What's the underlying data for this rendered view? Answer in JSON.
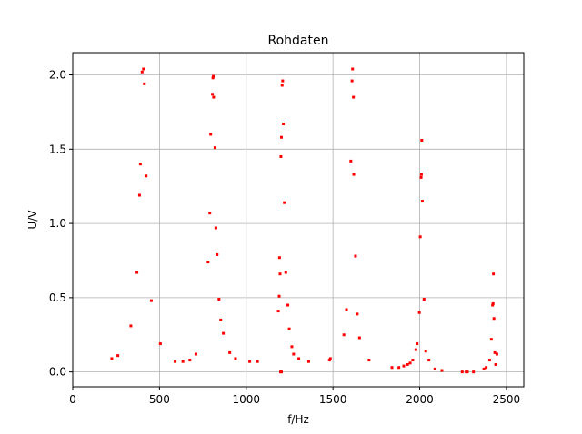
{
  "chart_data": {
    "type": "scatter",
    "title": "Rohdaten",
    "xlabel": "f/Hz",
    "ylabel": "U/V",
    "xlim": [
      0,
      2600
    ],
    "ylim": [
      -0.1,
      2.15
    ],
    "xticks": [
      0,
      500,
      1000,
      1500,
      2000,
      2500
    ],
    "yticks": [
      0.0,
      0.5,
      1.0,
      1.5,
      2.0
    ],
    "xtick_labels": [
      "0",
      "500",
      "1000",
      "1500",
      "2000",
      "2500"
    ],
    "ytick_labels": [
      "0.0",
      "0.5",
      "1.0",
      "1.5",
      "2.0"
    ],
    "grid": true,
    "marker_color": "#ff0000",
    "points": [
      [
        225,
        0.09
      ],
      [
        260,
        0.11
      ],
      [
        335,
        0.31
      ],
      [
        370,
        0.67
      ],
      [
        385,
        1.19
      ],
      [
        390,
        1.4
      ],
      [
        400,
        2.02
      ],
      [
        408,
        2.04
      ],
      [
        413,
        1.94
      ],
      [
        423,
        1.32
      ],
      [
        453,
        0.48
      ],
      [
        505,
        0.19
      ],
      [
        590,
        0.07
      ],
      [
        635,
        0.07
      ],
      [
        675,
        0.08
      ],
      [
        710,
        0.12
      ],
      [
        780,
        0.74
      ],
      [
        790,
        1.07
      ],
      [
        795,
        1.6
      ],
      [
        805,
        1.87
      ],
      [
        808,
        1.98
      ],
      [
        810,
        1.99
      ],
      [
        812,
        1.85
      ],
      [
        820,
        1.51
      ],
      [
        825,
        0.97
      ],
      [
        832,
        0.79
      ],
      [
        843,
        0.49
      ],
      [
        853,
        0.35
      ],
      [
        868,
        0.26
      ],
      [
        905,
        0.13
      ],
      [
        938,
        0.09
      ],
      [
        1020,
        0.07
      ],
      [
        1065,
        0.07
      ],
      [
        1185,
        0.41
      ],
      [
        1190,
        0.51
      ],
      [
        1192,
        0.77
      ],
      [
        1195,
        0.66
      ],
      [
        1200,
        1.45
      ],
      [
        1203,
        1.58
      ],
      [
        1207,
        1.93
      ],
      [
        1210,
        1.96
      ],
      [
        1214,
        1.67
      ],
      [
        1220,
        1.14
      ],
      [
        1228,
        0.67
      ],
      [
        1240,
        0.45
      ],
      [
        1248,
        0.29
      ],
      [
        1263,
        0.17
      ],
      [
        1273,
        0.12
      ],
      [
        1303,
        0.09
      ],
      [
        1360,
        0.07
      ],
      [
        1198,
        0.0
      ],
      [
        1203,
        0.0
      ],
      [
        1480,
        0.08
      ],
      [
        1485,
        0.09
      ],
      [
        1563,
        0.25
      ],
      [
        1578,
        0.42
      ],
      [
        1603,
        1.42
      ],
      [
        1610,
        1.96
      ],
      [
        1613,
        2.04
      ],
      [
        1618,
        1.85
      ],
      [
        1620,
        1.33
      ],
      [
        1630,
        0.78
      ],
      [
        1640,
        0.39
      ],
      [
        1653,
        0.23
      ],
      [
        1708,
        0.08
      ],
      [
        1840,
        0.03
      ],
      [
        1880,
        0.03
      ],
      [
        1908,
        0.04
      ],
      [
        1930,
        0.05
      ],
      [
        1945,
        0.06
      ],
      [
        1960,
        0.08
      ],
      [
        1978,
        0.15
      ],
      [
        1985,
        0.19
      ],
      [
        1998,
        0.4
      ],
      [
        2003,
        0.91
      ],
      [
        2008,
        1.31
      ],
      [
        2010,
        1.33
      ],
      [
        2012,
        1.56
      ],
      [
        2015,
        1.15
      ],
      [
        2025,
        0.49
      ],
      [
        2035,
        0.14
      ],
      [
        2053,
        0.08
      ],
      [
        2088,
        0.02
      ],
      [
        2128,
        0.01
      ],
      [
        2245,
        0.0
      ],
      [
        2268,
        0.0
      ],
      [
        2275,
        0.0
      ],
      [
        2310,
        0.0
      ],
      [
        2370,
        0.02
      ],
      [
        2383,
        0.03
      ],
      [
        2403,
        0.08
      ],
      [
        2413,
        0.22
      ],
      [
        2420,
        0.45
      ],
      [
        2423,
        0.46
      ],
      [
        2425,
        0.66
      ],
      [
        2428,
        0.36
      ],
      [
        2433,
        0.13
      ],
      [
        2438,
        0.05
      ],
      [
        2445,
        0.12
      ]
    ]
  }
}
